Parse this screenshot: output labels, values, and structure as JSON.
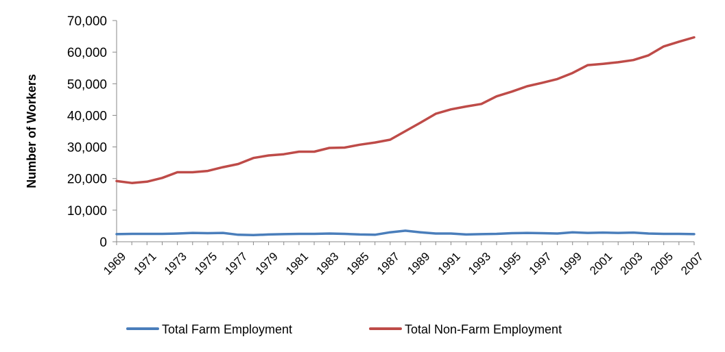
{
  "chart_data": {
    "type": "line",
    "title": "",
    "xlabel": "",
    "ylabel": "Number of Workers",
    "ylim": [
      0,
      70000
    ],
    "yticks": [
      "0",
      "10,000",
      "20,000",
      "30,000",
      "40,000",
      "50,000",
      "60,000",
      "70,000"
    ],
    "ytick_values": [
      0,
      10000,
      20000,
      30000,
      40000,
      50000,
      60000,
      70000
    ],
    "x": [
      1969,
      1970,
      1971,
      1972,
      1973,
      1974,
      1975,
      1976,
      1977,
      1978,
      1979,
      1980,
      1981,
      1982,
      1983,
      1984,
      1985,
      1986,
      1987,
      1988,
      1989,
      1990,
      1991,
      1992,
      1993,
      1994,
      1995,
      1996,
      1997,
      1998,
      1999,
      2000,
      2001,
      2002,
      2003,
      2004,
      2005,
      2006,
      2007
    ],
    "xtick_labels": [
      "1969",
      "1971",
      "1973",
      "1975",
      "1977",
      "1979",
      "1981",
      "1983",
      "1985",
      "1987",
      "1989",
      "1991",
      "1993",
      "1995",
      "1997",
      "1999",
      "2001",
      "2003",
      "2005",
      "2007"
    ],
    "xtick_values": [
      1969,
      1971,
      1973,
      1975,
      1977,
      1979,
      1981,
      1983,
      1985,
      1987,
      1989,
      1991,
      1993,
      1995,
      1997,
      1999,
      2001,
      2003,
      2005,
      2007
    ],
    "grid": false,
    "legend_position": "bottom",
    "series": [
      {
        "name": "Total Farm Employment",
        "color": "#4a7ebb",
        "values": [
          2400,
          2500,
          2500,
          2500,
          2600,
          2800,
          2700,
          2800,
          2200,
          2100,
          2300,
          2400,
          2500,
          2500,
          2600,
          2500,
          2300,
          2200,
          3000,
          3500,
          3000,
          2600,
          2600,
          2300,
          2400,
          2500,
          2700,
          2800,
          2700,
          2600,
          3000,
          2800,
          2900,
          2800,
          2900,
          2600,
          2500,
          2500,
          2400
        ]
      },
      {
        "name": "Total Non-Farm Employment",
        "color": "#be4b48",
        "values": [
          19200,
          18600,
          19000,
          20200,
          22000,
          22000,
          22400,
          23600,
          24600,
          26500,
          27300,
          27700,
          28500,
          28500,
          29700,
          29800,
          30700,
          31400,
          32300,
          35000,
          37700,
          40500,
          41900,
          42800,
          43600,
          46000,
          47500,
          49200,
          50300,
          51500,
          53400,
          55900,
          56300,
          56800,
          57500,
          59000,
          61800,
          63300,
          64700
        ]
      }
    ]
  }
}
